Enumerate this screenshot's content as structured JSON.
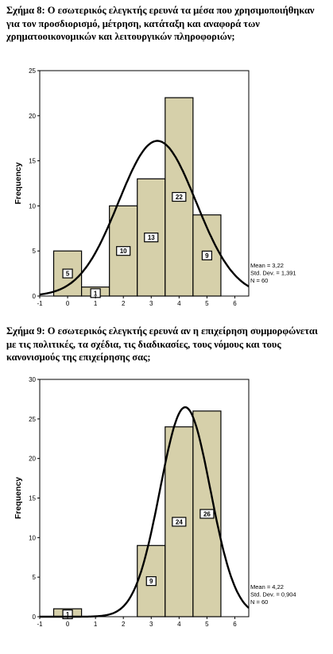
{
  "captions": [
    "Σχήμα 8: Ο εσωτερικός ελεγκτής ερευνά τα μέσα που χρησιμοποιήθηκαν για τον προσδιορισμό, μέτρηση, κατάταξη και αναφορά των χρηματοοικονομικών και λειτουργικών πληροφοριών;",
    "Σχήμα 9: Ο εσωτερικός ελεγκτής ερευνά αν η επιχείρηση συμμορφώνεται με τις πολιτικές, τα σχέδια, τις διαδικασίες, τους νόμους και τους κανονισμούς της επιχείρησης σας;"
  ],
  "style": {
    "bar_fill": "#d6d0aa",
    "bar_stroke": "#000000",
    "curve_color": "#000000"
  },
  "chart_data": [
    {
      "type": "bar",
      "title": "",
      "xlabel": "",
      "ylabel": "Frequency",
      "x": [
        0,
        1,
        2,
        3,
        4,
        5
      ],
      "values": [
        5,
        1,
        10,
        13,
        22,
        9
      ],
      "data_labels": [
        "5",
        "1",
        "10",
        "13",
        "22",
        "9"
      ],
      "xlim": [
        -1,
        6.5
      ],
      "ylim": [
        0,
        25
      ],
      "xticks": [
        "-1",
        "0",
        "1",
        "2",
        "3",
        "4",
        "5",
        "6"
      ],
      "yticks": [
        "0",
        "5",
        "10",
        "15",
        "20",
        "25"
      ],
      "normal_curve": {
        "mean": 3.22,
        "sd": 1.391,
        "n": 60
      },
      "stats": [
        "Mean = 3,22",
        "Std. Dev. = 1,391",
        "N = 60"
      ],
      "grid": false
    },
    {
      "type": "bar",
      "title": "",
      "xlabel": "",
      "ylabel": "Frequency",
      "x": [
        0,
        1,
        2,
        3,
        4,
        5
      ],
      "values": [
        1,
        0,
        0,
        9,
        24,
        26
      ],
      "data_labels": [
        "1",
        "",
        "",
        "9",
        "24",
        "26"
      ],
      "xlim": [
        -1,
        6.5
      ],
      "ylim": [
        0,
        30
      ],
      "xticks": [
        "-1",
        "0",
        "1",
        "2",
        "3",
        "4",
        "5",
        "6"
      ],
      "yticks": [
        "0",
        "5",
        "10",
        "15",
        "20",
        "25",
        "30"
      ],
      "normal_curve": {
        "mean": 4.22,
        "sd": 0.904,
        "n": 60
      },
      "stats": [
        "Mean = 4,22",
        "Std. Dev. = 0,904",
        "N = 60"
      ],
      "grid": false
    }
  ]
}
